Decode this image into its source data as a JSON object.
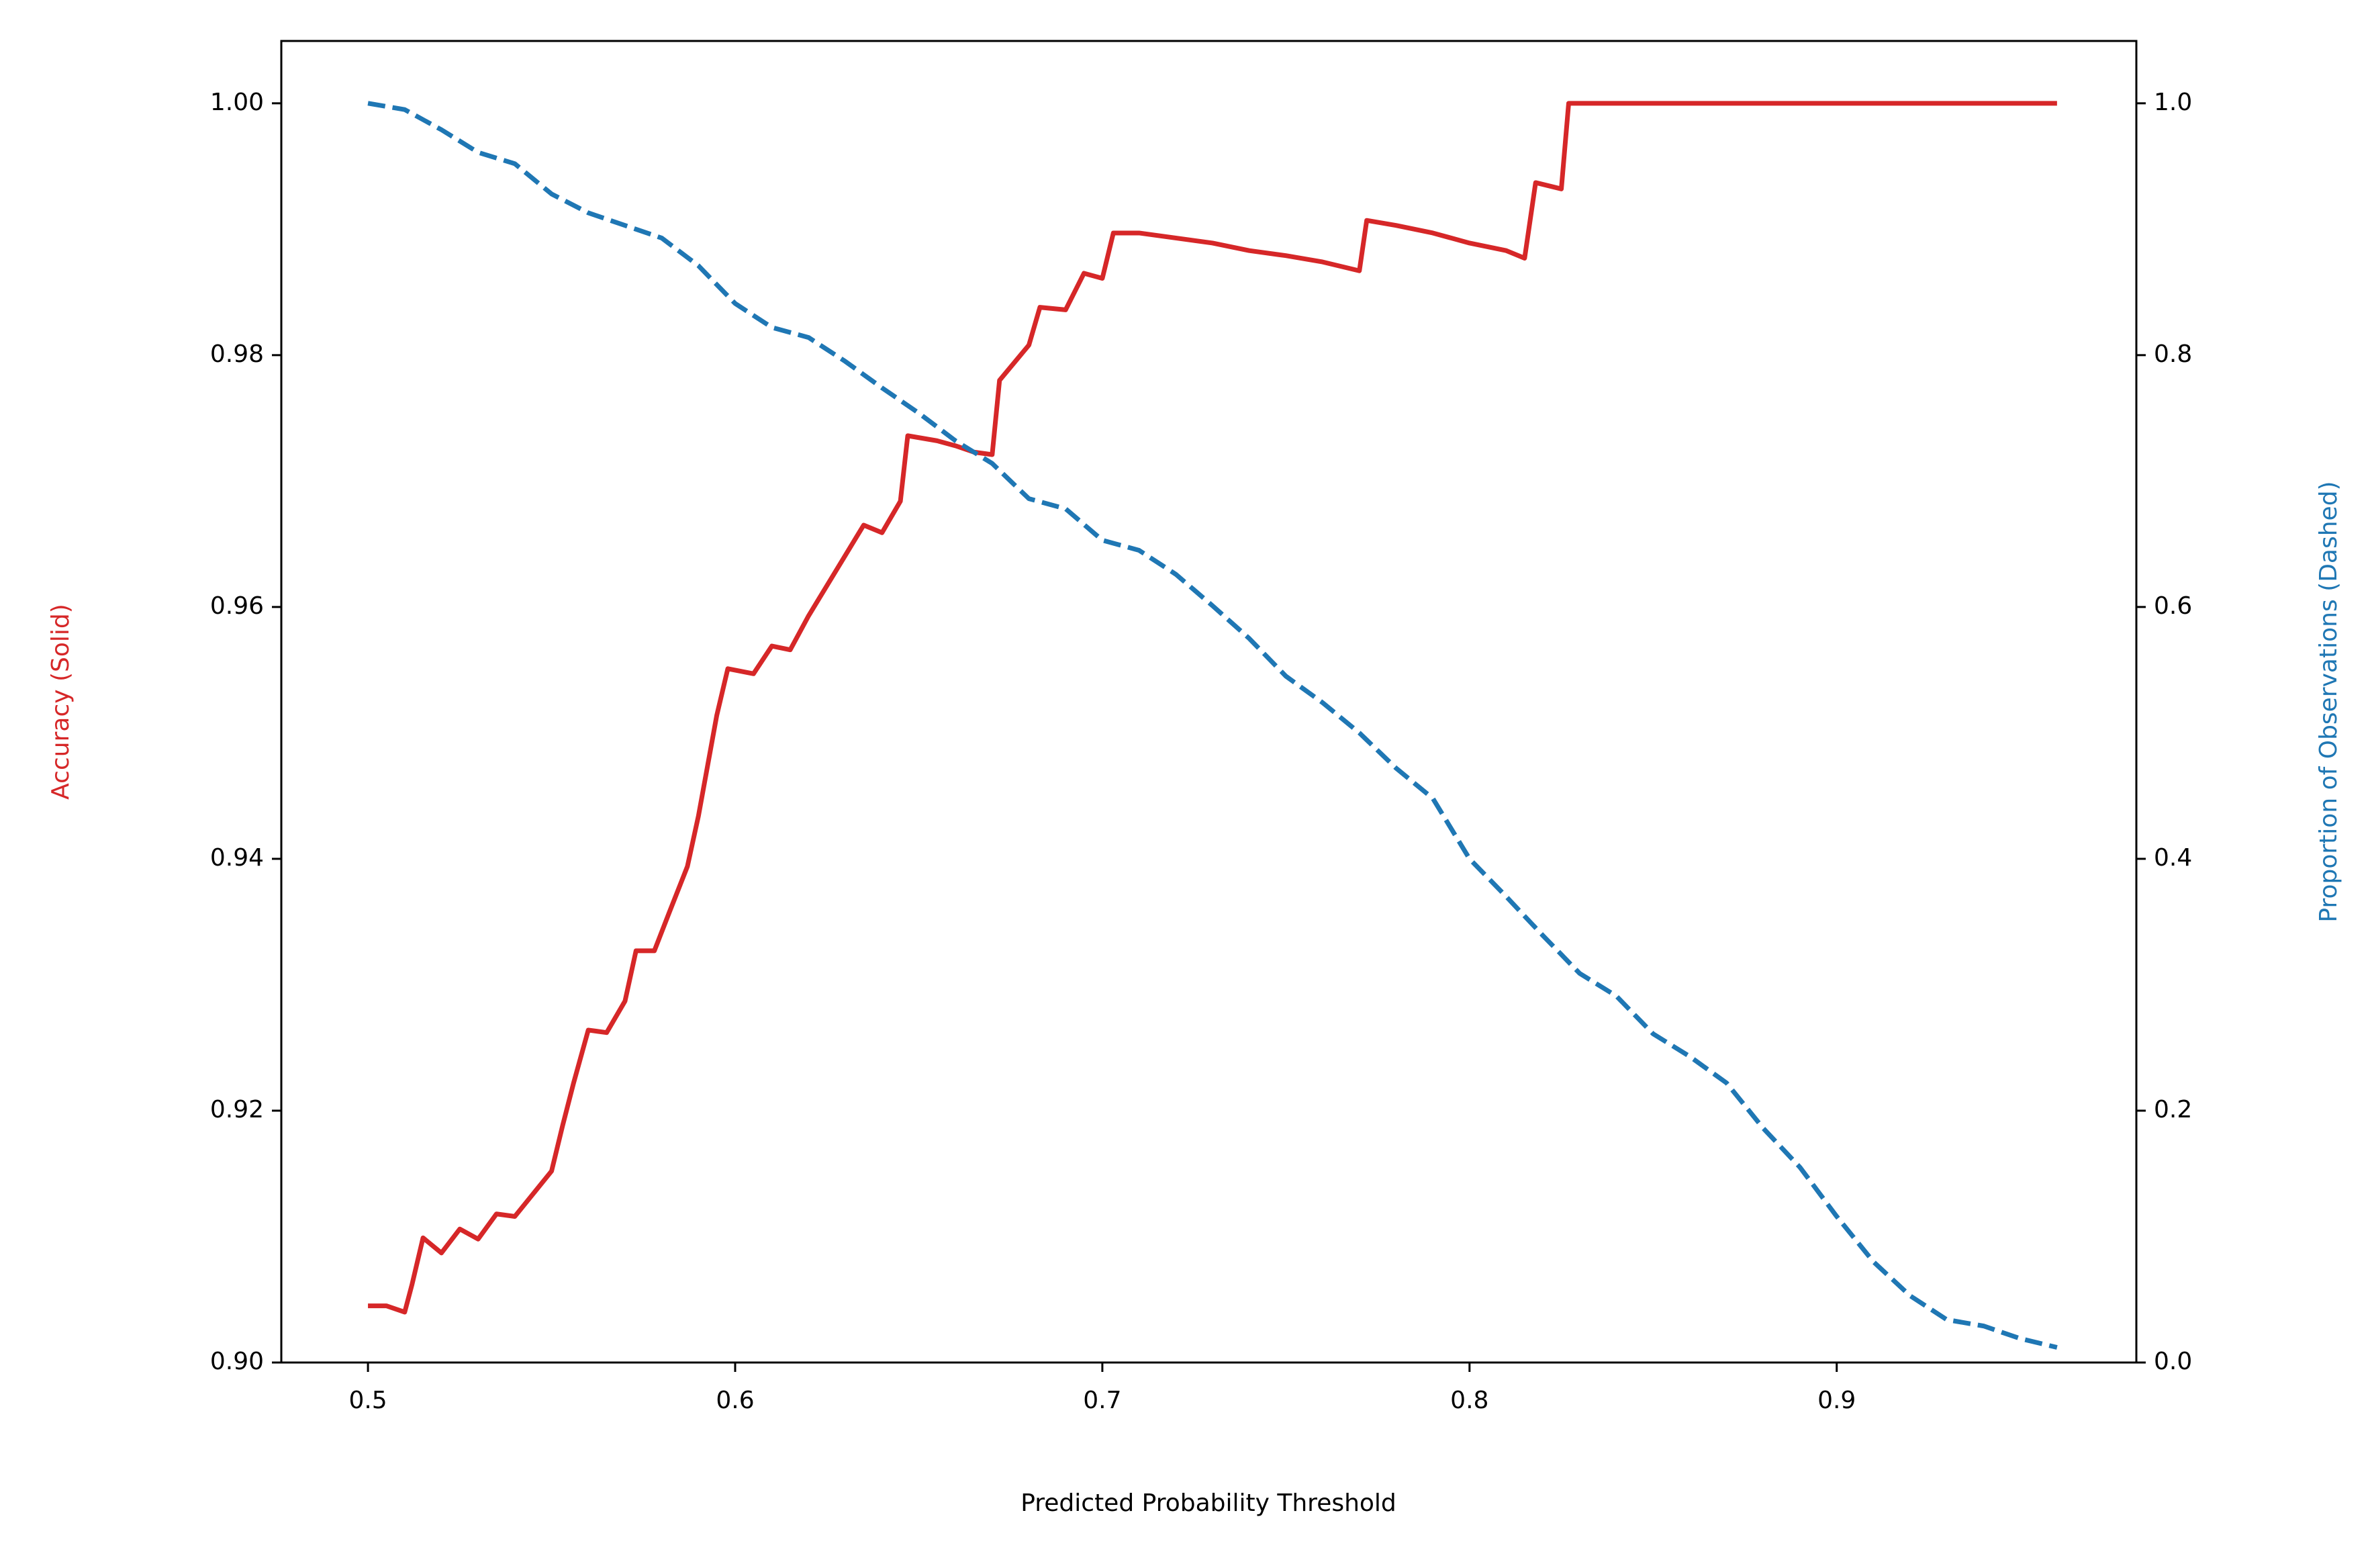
{
  "chart_data": {
    "type": "line",
    "xlabel": "Predicted Probability Threshold",
    "ylabel": "Accuracy (Solid)",
    "y2label": "Proportion of Observations (Dashed)",
    "xlim": [
      0.4764,
      0.9816
    ],
    "xticks": [
      0.5,
      0.6,
      0.7,
      0.8,
      0.9
    ],
    "ylim": [
      0.9,
      1.00495
    ],
    "yticks": [
      {
        "value": 0.9,
        "label": "0.90"
      },
      {
        "value": 0.92,
        "label": "0.92"
      },
      {
        "value": 0.94,
        "label": "0.94"
      },
      {
        "value": 0.96,
        "label": "0.96"
      },
      {
        "value": 0.98,
        "label": "0.98"
      },
      {
        "value": 1.0,
        "label": "1.00"
      }
    ],
    "y2lim": [
      0,
      1.0495
    ],
    "y2ticks": [
      {
        "value": 0,
        "label": "0.0"
      },
      0.2,
      0.4,
      0.6,
      0.8,
      {
        "value": 1,
        "label": "1.0"
      }
    ],
    "series": [
      {
        "name": "Accuracy",
        "color": "#d62728",
        "dashed": false,
        "x": [
          0.5,
          0.505,
          0.51,
          0.512,
          0.515,
          0.52,
          0.525,
          0.53,
          0.535,
          0.54,
          0.545,
          0.55,
          0.553,
          0.556,
          0.56,
          0.565,
          0.57,
          0.573,
          0.578,
          0.582,
          0.587,
          0.59,
          0.595,
          0.598,
          0.605,
          0.61,
          0.615,
          0.62,
          0.625,
          0.63,
          0.635,
          0.64,
          0.645,
          0.647,
          0.655,
          0.66,
          0.665,
          0.67,
          0.672,
          0.68,
          0.683,
          0.69,
          0.695,
          0.7,
          0.703,
          0.71,
          0.72,
          0.73,
          0.74,
          0.75,
          0.76,
          0.77,
          0.772,
          0.78,
          0.79,
          0.8,
          0.81,
          0.815,
          0.818,
          0.825,
          0.827,
          0.96
        ],
        "values": [
          0.9045,
          0.9045,
          0.904,
          0.9062,
          0.9099,
          0.9087,
          0.9106,
          0.9098,
          0.9118,
          0.9116,
          0.9134,
          0.9152,
          0.9188,
          0.9222,
          0.9264,
          0.9262,
          0.9287,
          0.9327,
          0.9327,
          0.9357,
          0.9394,
          0.9434,
          0.9514,
          0.9551,
          0.9547,
          0.9569,
          0.9566,
          0.9593,
          0.9617,
          0.9641,
          0.9665,
          0.9659,
          0.9684,
          0.9736,
          0.9732,
          0.9728,
          0.9723,
          0.9721,
          0.978,
          0.9808,
          0.9838,
          0.9836,
          0.9865,
          0.9861,
          0.9897,
          0.9897,
          0.9893,
          0.9889,
          0.9883,
          0.9879,
          0.9874,
          0.9867,
          0.9907,
          0.9903,
          0.9897,
          0.9889,
          0.9883,
          0.9877,
          0.9937,
          0.9932,
          1.0,
          1.0
        ]
      },
      {
        "name": "Proportion of Observations",
        "color": "#1f77b4",
        "dashed": true,
        "axis": "y2",
        "x": [
          0.5,
          0.51,
          0.52,
          0.53,
          0.54,
          0.55,
          0.56,
          0.57,
          0.58,
          0.59,
          0.6,
          0.61,
          0.62,
          0.63,
          0.64,
          0.65,
          0.66,
          0.67,
          0.68,
          0.69,
          0.7,
          0.71,
          0.72,
          0.73,
          0.74,
          0.75,
          0.76,
          0.77,
          0.78,
          0.79,
          0.8,
          0.81,
          0.82,
          0.83,
          0.84,
          0.85,
          0.86,
          0.87,
          0.88,
          0.89,
          0.9,
          0.91,
          0.92,
          0.93,
          0.94,
          0.95,
          0.96
        ],
        "values": [
          1.0,
          0.995,
          0.979,
          0.961,
          0.952,
          0.928,
          0.913,
          0.903,
          0.893,
          0.871,
          0.841,
          0.822,
          0.814,
          0.795,
          0.774,
          0.754,
          0.732,
          0.714,
          0.686,
          0.678,
          0.653,
          0.645,
          0.626,
          0.601,
          0.575,
          0.545,
          0.524,
          0.5,
          0.472,
          0.448,
          0.4,
          0.37,
          0.339,
          0.309,
          0.291,
          0.261,
          0.243,
          0.222,
          0.186,
          0.155,
          0.116,
          0.08,
          0.053,
          0.034,
          0.029,
          0.019,
          0.012
        ]
      }
    ]
  }
}
